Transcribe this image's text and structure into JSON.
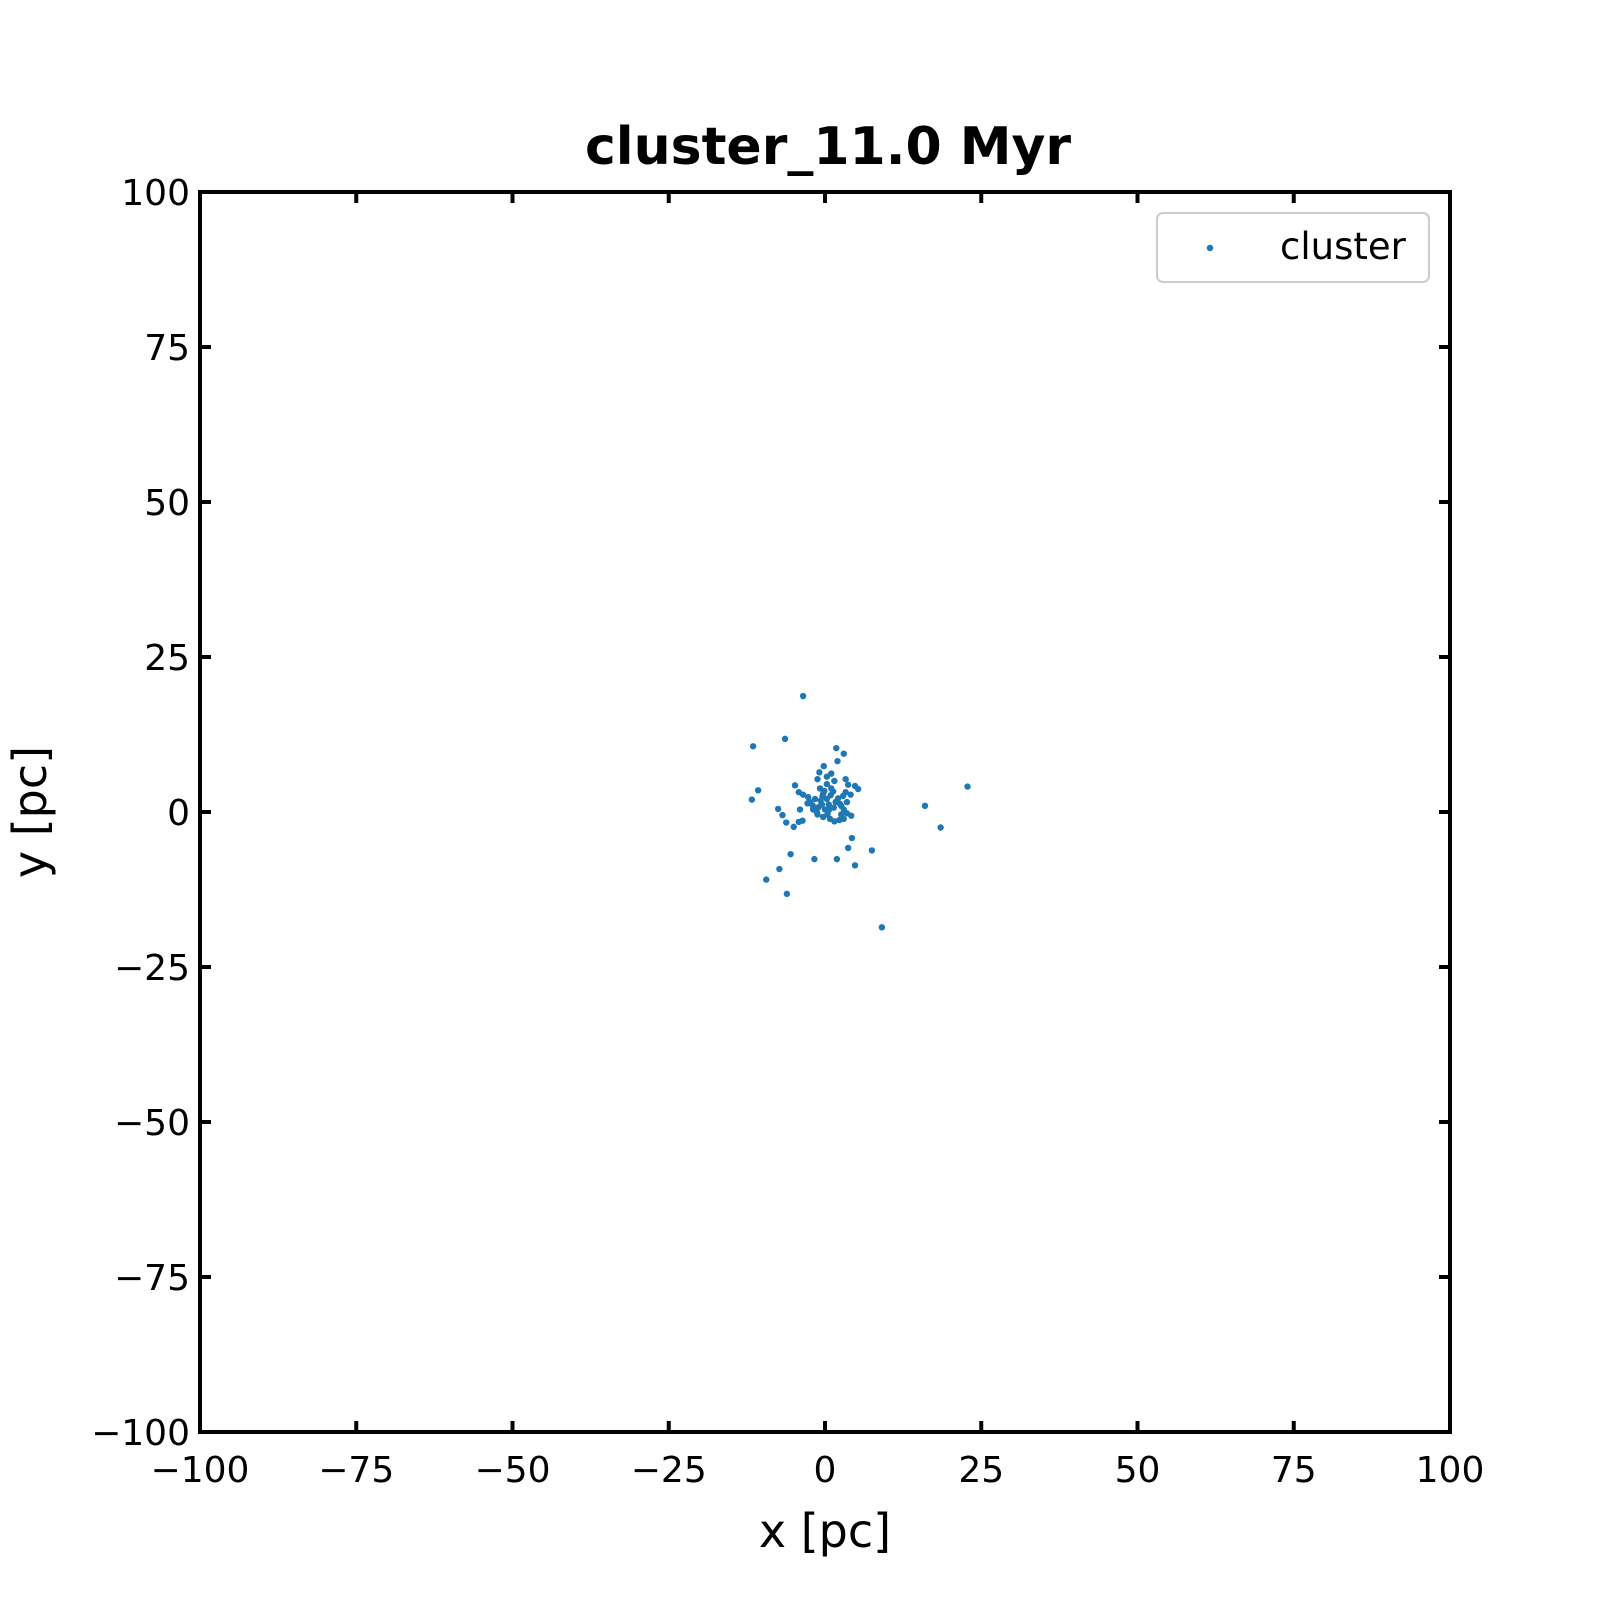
{
  "chart_data": {
    "type": "scatter",
    "title": "cluster_11.0 Myr",
    "xlabel": "x [pc]",
    "ylabel": "y [pc]",
    "xlim": [
      -100,
      100
    ],
    "ylim": [
      -100,
      100
    ],
    "xticks": [
      -100,
      -75,
      -50,
      -25,
      0,
      25,
      50,
      75,
      100
    ],
    "yticks": [
      -100,
      -75,
      -50,
      -25,
      0,
      25,
      50,
      75,
      100
    ],
    "xtick_labels": [
      "−100",
      "−75",
      "−50",
      "−25",
      "0",
      "25",
      "50",
      "75",
      "100"
    ],
    "ytick_labels": [
      "−100",
      "−75",
      "−50",
      "−25",
      "0",
      "25",
      "50",
      "75",
      "100"
    ],
    "grid": false,
    "legend_position": "top-right",
    "series": [
      {
        "name": "cluster",
        "color": "#1f77b4",
        "points": [
          [
            -3.5,
            18.7
          ],
          [
            -6.4,
            11.8
          ],
          [
            -11.5,
            10.6
          ],
          [
            -10.7,
            3.5
          ],
          [
            -11.7,
            2.0
          ],
          [
            -7.5,
            0.5
          ],
          [
            -6.8,
            -0.5
          ],
          [
            -6.2,
            -1.7
          ],
          [
            -5.0,
            -2.4
          ],
          [
            -4.2,
            -1.6
          ],
          [
            -3.6,
            -1.4
          ],
          [
            -4.0,
            0.4
          ],
          [
            -4.8,
            4.3
          ],
          [
            -4.2,
            3.2
          ],
          [
            -3.5,
            2.8
          ],
          [
            -2.7,
            2.4
          ],
          [
            -2.4,
            1.6
          ],
          [
            -2.0,
            1.1
          ],
          [
            -1.6,
            0.6
          ],
          [
            -1.3,
            0.0
          ],
          [
            -1.0,
            0.8
          ],
          [
            -0.7,
            1.8
          ],
          [
            -0.4,
            2.5
          ],
          [
            -0.1,
            3.4
          ],
          [
            0.3,
            2.1
          ],
          [
            0.6,
            1.2
          ],
          [
            0.9,
            2.7
          ],
          [
            1.3,
            3.3
          ],
          [
            1.7,
            1.6
          ],
          [
            2.1,
            2.2
          ],
          [
            2.6,
            1.0
          ],
          [
            3.0,
            0.4
          ],
          [
            3.5,
            -0.2
          ],
          [
            4.2,
            -0.6
          ],
          [
            3.0,
            -1.1
          ],
          [
            2.3,
            -1.3
          ],
          [
            1.5,
            -1.5
          ],
          [
            0.8,
            -1.1
          ],
          [
            0.4,
            -0.4
          ],
          [
            0.0,
            0.4
          ],
          [
            -0.5,
            1.2
          ],
          [
            -0.8,
            3.8
          ],
          [
            -1.2,
            5.3
          ],
          [
            -0.9,
            6.4
          ],
          [
            -0.2,
            7.4
          ],
          [
            0.3,
            5.7
          ],
          [
            1.0,
            6.2
          ],
          [
            1.5,
            5.0
          ],
          [
            2.0,
            8.2
          ],
          [
            1.8,
            10.3
          ],
          [
            3.0,
            9.4
          ],
          [
            3.3,
            5.3
          ],
          [
            3.7,
            4.4
          ],
          [
            4.8,
            4.2
          ],
          [
            5.3,
            3.7
          ],
          [
            4.1,
            2.8
          ],
          [
            3.5,
            1.6
          ],
          [
            2.6,
            -0.4
          ],
          [
            1.0,
            3.8
          ],
          [
            0.3,
            4.5
          ],
          [
            -1.6,
            2.1
          ],
          [
            -2.8,
            1.4
          ],
          [
            -1.9,
            0.4
          ],
          [
            -1.2,
            -0.4
          ],
          [
            -0.3,
            -0.8
          ],
          [
            0.6,
            0.3
          ],
          [
            1.4,
            0.7
          ],
          [
            2.4,
            1.3
          ],
          [
            2.9,
            2.6
          ],
          [
            3.3,
            3.2
          ],
          [
            4.3,
            -4.2
          ],
          [
            3.7,
            -5.8
          ],
          [
            7.5,
            -6.2
          ],
          [
            4.8,
            -8.6
          ],
          [
            1.9,
            -7.6
          ],
          [
            -1.7,
            -7.6
          ],
          [
            -5.5,
            -6.8
          ],
          [
            -7.3,
            -9.2
          ],
          [
            -9.4,
            -10.9
          ],
          [
            -6.1,
            -13.2
          ],
          [
            9.1,
            -18.6
          ],
          [
            16.0,
            1.0
          ],
          [
            18.5,
            -2.5
          ],
          [
            22.8,
            4.1
          ],
          [
            -0.3,
            2.9
          ]
        ]
      }
    ]
  }
}
